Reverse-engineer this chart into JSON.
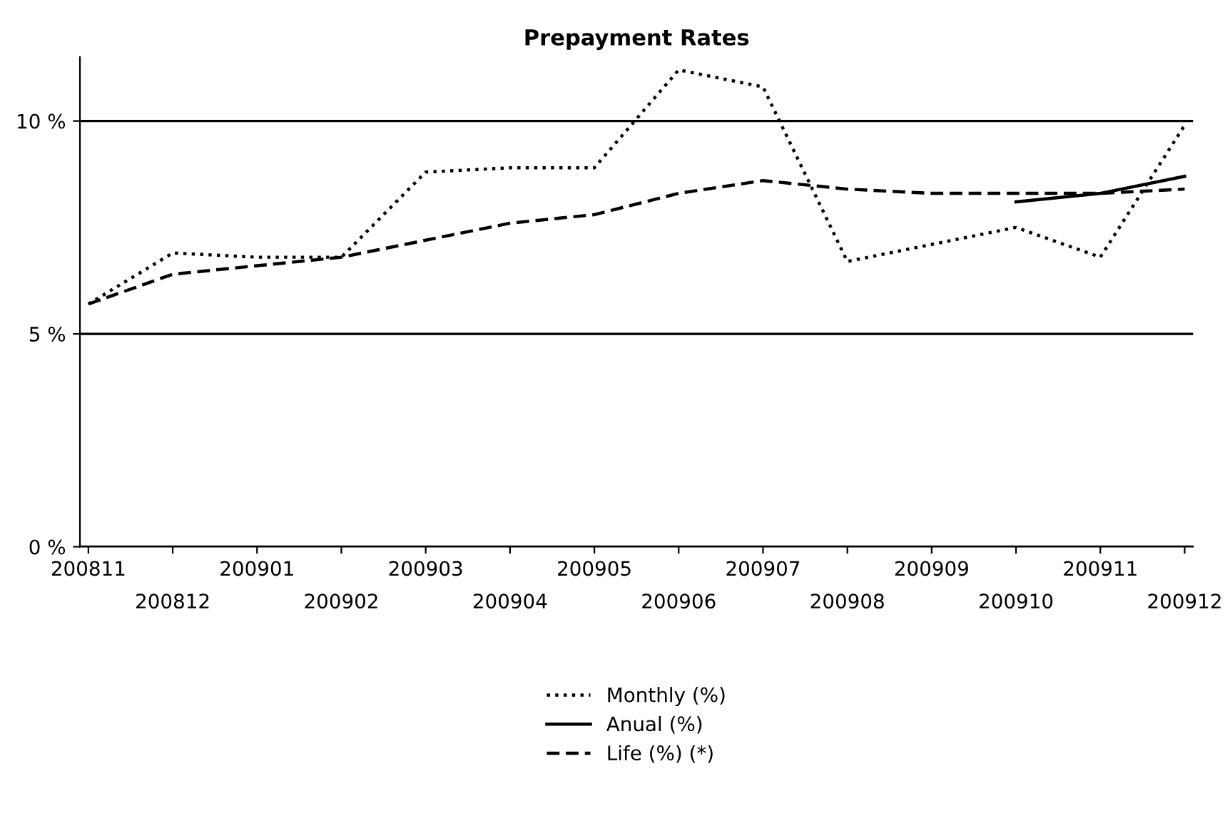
{
  "chart_data": {
    "type": "line",
    "title": "Prepayment Rates",
    "categories": [
      "200811",
      "200812",
      "200901",
      "200902",
      "200903",
      "200904",
      "200905",
      "200906",
      "200907",
      "200908",
      "200909",
      "200910",
      "200911",
      "200912"
    ],
    "series": [
      {
        "name": "Monthly (%)",
        "color": "#000000",
        "line_style": "dotted",
        "values": [
          5.7,
          6.9,
          6.8,
          6.8,
          8.8,
          8.9,
          8.9,
          11.2,
          10.8,
          6.7,
          7.1,
          7.5,
          6.8,
          9.9
        ]
      },
      {
        "name": "Anual (%)",
        "color": "#000000",
        "line_style": "solid",
        "values": [
          null,
          null,
          null,
          null,
          null,
          null,
          null,
          null,
          null,
          null,
          null,
          8.1,
          8.3,
          8.7
        ]
      },
      {
        "name": "Life (%) (*)",
        "color": "#000000",
        "line_style": "dashed",
        "values": [
          5.7,
          6.4,
          6.6,
          6.8,
          7.2,
          7.6,
          7.8,
          8.3,
          8.6,
          8.4,
          8.3,
          8.3,
          8.3,
          8.4
        ]
      }
    ],
    "ylim": [
      0,
      11.5
    ],
    "yticks": [
      {
        "value": 0,
        "label": "0 %"
      },
      {
        "value": 5,
        "label": "5 %"
      },
      {
        "value": 10,
        "label": "10 %"
      }
    ],
    "grid": "y",
    "legend": "bottom",
    "marker": "none"
  }
}
